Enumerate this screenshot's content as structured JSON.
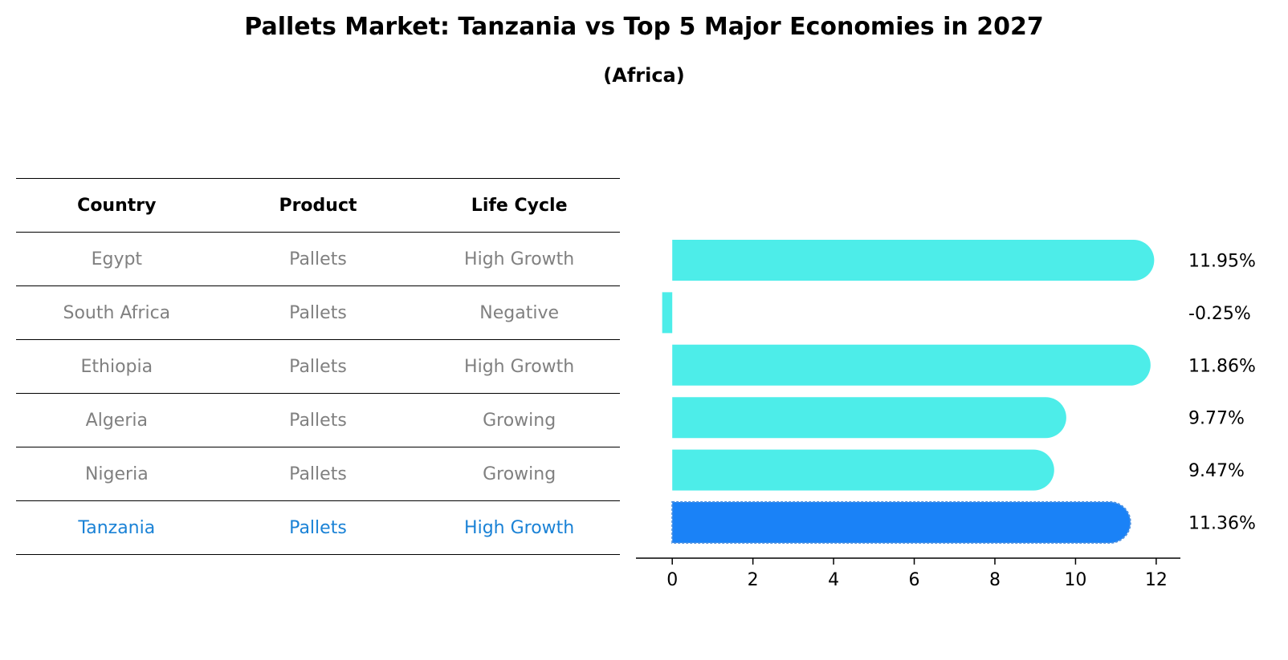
{
  "title": "Pallets Market: Tanzania vs Top 5 Major Economies in 2027",
  "subtitle": "(Africa)",
  "table": {
    "headers": [
      "Country",
      "Product",
      "Life Cycle"
    ],
    "rows": [
      {
        "country": "Egypt",
        "product": "Pallets",
        "life_cycle": "High Growth"
      },
      {
        "country": "South Africa",
        "product": "Pallets",
        "life_cycle": "Negative"
      },
      {
        "country": "Ethiopia",
        "product": "Pallets",
        "life_cycle": "High Growth"
      },
      {
        "country": "Algeria",
        "product": "Pallets",
        "life_cycle": "Growing"
      },
      {
        "country": "Nigeria",
        "product": "Pallets",
        "life_cycle": "Growing"
      },
      {
        "country": "Tanzania",
        "product": "Pallets",
        "life_cycle": "High Growth"
      }
    ],
    "highlight_row": 5
  },
  "colors": {
    "bar": "#4dede9",
    "highlight_bar": "#1a82f7",
    "muted_text": "#808080",
    "highlight_text": "#1a82d6"
  },
  "chart_data": {
    "type": "bar",
    "orientation": "horizontal",
    "categories": [
      "Egypt",
      "South Africa",
      "Ethiopia",
      "Algeria",
      "Nigeria",
      "Tanzania"
    ],
    "values": [
      11.95,
      -0.25,
      11.86,
      9.77,
      9.47,
      11.36
    ],
    "value_labels": [
      "11.95%",
      "-0.25%",
      "11.86%",
      "9.77%",
      "9.47%",
      "11.36%"
    ],
    "highlight_index": 5,
    "xlim": [
      -0.9,
      12.6
    ],
    "xticks": [
      0,
      2,
      4,
      6,
      8,
      10,
      12
    ],
    "unit": "%"
  }
}
